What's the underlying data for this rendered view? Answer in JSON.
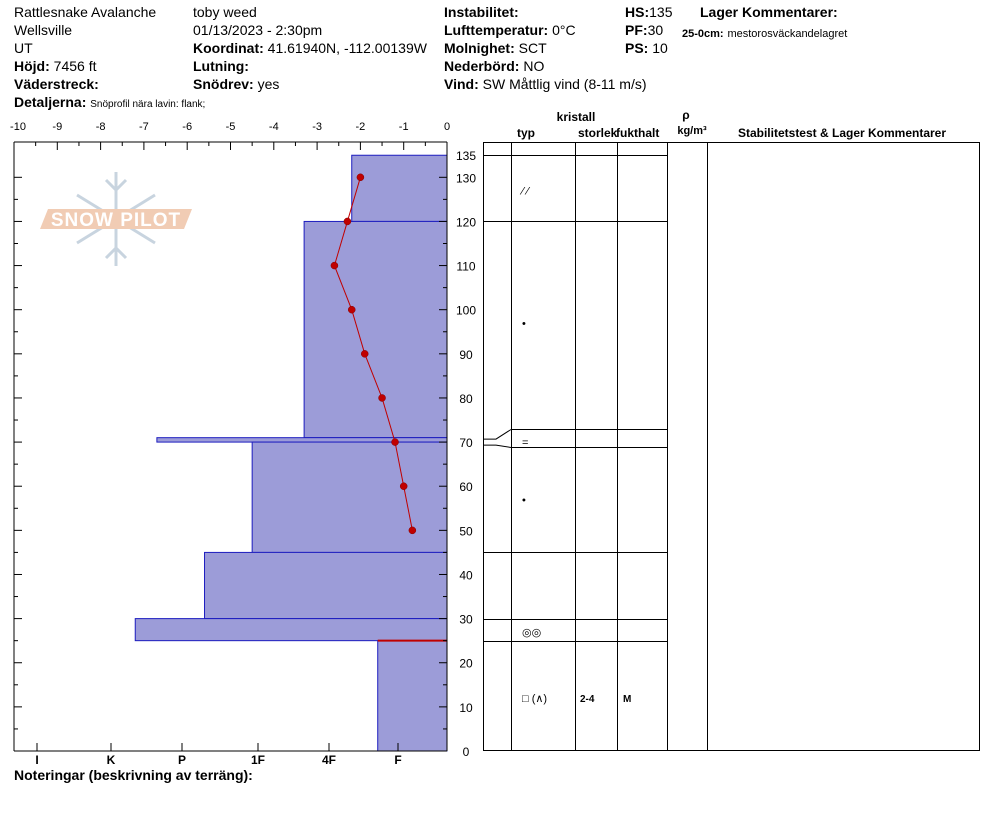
{
  "header": {
    "location": "Rattlesnake Avalanche",
    "area": "Wellsville",
    "state": "UT",
    "observer": "toby weed",
    "datetime": "01/13/2023 - 2:30pm",
    "elevation_label": "Höjd:",
    "elevation_value": "7456 ft",
    "aspect_label": "Väderstreck:",
    "aspect_value": "",
    "details_label": "Detaljerna:",
    "details_value": "Snöprofil nära lavin: flank;",
    "coord_label": "Koordinat:",
    "coord_value": "41.61940N, -112.00139W",
    "slope_label": "Lutning:",
    "slope_value": "",
    "snowdrift_label": "Snödrev:",
    "snowdrift_value": "yes",
    "instability_label": "Instabilitet:",
    "instability_value": "",
    "airtemp_label": "Lufttemperatur:",
    "airtemp_value": "0°C",
    "cloud_label": "Molnighet:",
    "cloud_value": "SCT",
    "precip_label": "Nederbörd:",
    "precip_value": "NO",
    "wind_label": "Vind:",
    "wind_value": "SW  Måttlig vind (8-11 m/s)",
    "hs_label": "HS:",
    "hs_value": "135",
    "pf_label": "PF:",
    "pf_value": "30",
    "ps_label": "PS:",
    "ps_value": "10",
    "layer_comments_label": "Lager Kommentarer:",
    "layer_comment_range": "25-0cm:",
    "layer_comment_text": "mestorosväckandelagret"
  },
  "logo_text": "SNOW PILOT",
  "columns": {
    "crystal": "kristall",
    "type": "typ",
    "size": "storlek",
    "moisture": "fukthalt",
    "rho": "ρ",
    "density_unit": "kg/m³",
    "stability": "Stabilitetstest & Lager Kommentarer"
  },
  "footer": {
    "notes_label": "Noteringar (beskrivning av terräng):"
  },
  "chart_data": {
    "type": "snow-profile",
    "temperature_axis": {
      "ticks": [
        "-10",
        "-9",
        "-8",
        "-7",
        "-6",
        "-5",
        "-4",
        "-3",
        "-2",
        "-1",
        "0"
      ],
      "range": [
        -10,
        0
      ]
    },
    "hardness_axis": {
      "ticks": [
        "I",
        "K",
        "P",
        "1F",
        "4F",
        "F"
      ]
    },
    "height_axis": {
      "ticks": [
        "135",
        "130",
        "120",
        "110",
        "100",
        "90",
        "80",
        "70",
        "60",
        "50",
        "40",
        "30",
        "20",
        "10",
        "0"
      ],
      "range": [
        0,
        135
      ]
    },
    "temperature_profile": [
      {
        "h": 130,
        "t": -2.0
      },
      {
        "h": 120,
        "t": -2.3
      },
      {
        "h": 110,
        "t": -2.6
      },
      {
        "h": 100,
        "t": -2.2
      },
      {
        "h": 90,
        "t": -1.9
      },
      {
        "h": 80,
        "t": -1.5
      },
      {
        "h": 70,
        "t": -1.2
      },
      {
        "h": 60,
        "t": -1.0
      },
      {
        "h": 50,
        "t": -0.8
      }
    ],
    "hardness_layers": [
      {
        "top": 135,
        "bottom": 120,
        "temp_scale_edge": -2.2
      },
      {
        "top": 120,
        "bottom": 71,
        "temp_scale_edge": -3.3
      },
      {
        "top": 71,
        "bottom": 70,
        "temp_scale_edge": -6.7
      },
      {
        "top": 70,
        "bottom": 45,
        "temp_scale_edge": -4.5
      },
      {
        "top": 45,
        "bottom": 30,
        "temp_scale_edge": -5.6
      },
      {
        "top": 30,
        "bottom": 25,
        "temp_scale_edge": -7.2
      },
      {
        "top": 25,
        "bottom": 0,
        "temp_scale_edge": -1.6
      }
    ],
    "layer_lines": [
      135,
      120,
      73,
      69,
      45,
      30,
      25
    ],
    "crystal_entries": [
      {
        "h": 127,
        "symbol": "⁄ ⁄"
      },
      {
        "h": 97,
        "symbol": "•"
      },
      {
        "h": 70,
        "symbol": "="
      },
      {
        "h": 57,
        "symbol": "•"
      },
      {
        "h": 27,
        "symbol": "◎◎"
      },
      {
        "h": 12,
        "symbol": "□ (∧)",
        "size": "2-4",
        "moisture": "M"
      }
    ],
    "critical_layer_h": 25
  }
}
